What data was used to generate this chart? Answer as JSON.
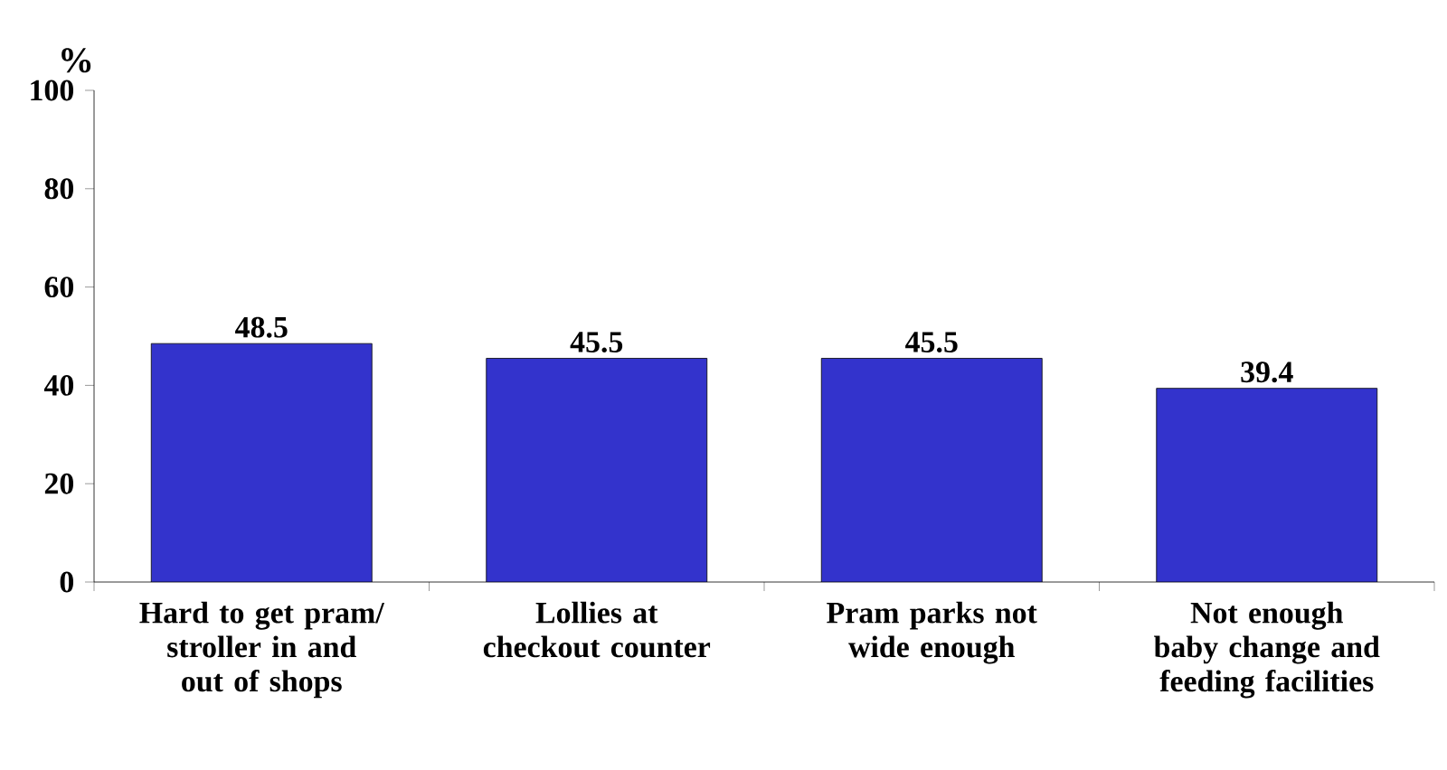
{
  "chart_data": {
    "type": "bar",
    "ylabel": "%",
    "categories": [
      "Hard to get pram/ stroller in and out of shops",
      "Lollies at checkout counter",
      "Pram parks not wide enough",
      "Not enough baby change and feeding  facilities"
    ],
    "values": [
      48.5,
      45.5,
      45.5,
      39.4
    ],
    "color": "#3333cc",
    "ylim": [
      0,
      100
    ],
    "yticks": [
      0,
      20,
      40,
      60,
      80,
      100
    ],
    "data_labels": true
  }
}
